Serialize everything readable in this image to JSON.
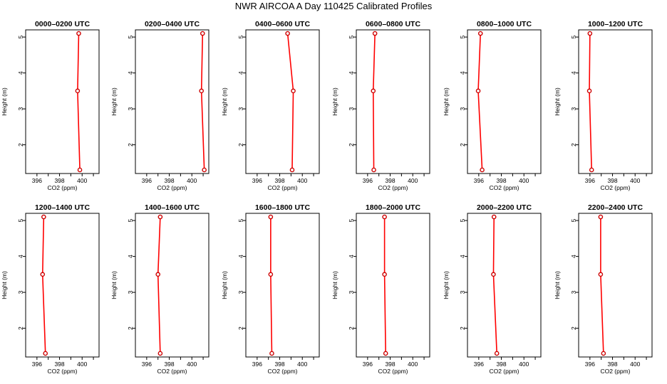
{
  "page_title": "NWR AIRCOA A  Day 110425  Calibrated Profiles",
  "colors": {
    "line": "#ff0000",
    "marker": "#cc0000",
    "frame": "#000000"
  },
  "chart_data": [
    {
      "type": "line",
      "title": "0000–0200 UTC",
      "xlabel": "CO2 (ppm)",
      "ylabel": "Height (m)",
      "xlim": [
        395,
        401.5
      ],
      "ylim": [
        1.2,
        5.2
      ],
      "xticks": [
        396,
        398,
        400
      ],
      "yticks": [
        2,
        3,
        4,
        5
      ],
      "series": [
        {
          "name": "profile",
          "points": [
            {
              "co2": 399.8,
              "height": 1.3
            },
            {
              "co2": 399.6,
              "height": 3.5
            },
            {
              "co2": 399.7,
              "height": 5.1
            }
          ]
        }
      ]
    },
    {
      "type": "line",
      "title": "0200–0400 UTC",
      "xlabel": "CO2 (ppm)",
      "ylabel": "Height (m)",
      "xlim": [
        395,
        401.5
      ],
      "ylim": [
        1.2,
        5.2
      ],
      "xticks": [
        396,
        398,
        400
      ],
      "yticks": [
        2,
        3,
        4,
        5
      ],
      "series": [
        {
          "name": "profile",
          "points": [
            {
              "co2": 401.1,
              "height": 1.3
            },
            {
              "co2": 400.85,
              "height": 3.5
            },
            {
              "co2": 400.95,
              "height": 5.1
            }
          ]
        }
      ]
    },
    {
      "type": "line",
      "title": "0400–0600 UTC",
      "xlabel": "CO2 (ppm)",
      "ylabel": "Height (m)",
      "xlim": [
        395,
        401.5
      ],
      "ylim": [
        1.2,
        5.2
      ],
      "xticks": [
        396,
        398,
        400
      ],
      "yticks": [
        2,
        3,
        4,
        5
      ],
      "series": [
        {
          "name": "profile",
          "points": [
            {
              "co2": 399.1,
              "height": 1.3
            },
            {
              "co2": 399.2,
              "height": 3.5
            },
            {
              "co2": 398.7,
              "height": 5.1
            }
          ]
        }
      ]
    },
    {
      "type": "line",
      "title": "0600–0800 UTC",
      "xlabel": "CO2 (ppm)",
      "ylabel": "Height (m)",
      "xlim": [
        395,
        401.5
      ],
      "ylim": [
        1.2,
        5.2
      ],
      "xticks": [
        396,
        398,
        400
      ],
      "yticks": [
        2,
        3,
        4,
        5
      ],
      "series": [
        {
          "name": "profile",
          "points": [
            {
              "co2": 396.55,
              "height": 1.3
            },
            {
              "co2": 396.5,
              "height": 3.5
            },
            {
              "co2": 396.65,
              "height": 5.1
            }
          ]
        }
      ]
    },
    {
      "type": "line",
      "title": "0800–1000 UTC",
      "xlabel": "CO2 (ppm)",
      "ylabel": "Height (m)",
      "xlim": [
        395,
        401.5
      ],
      "ylim": [
        1.2,
        5.2
      ],
      "xticks": [
        396,
        398,
        400
      ],
      "yticks": [
        2,
        3,
        4,
        5
      ],
      "series": [
        {
          "name": "profile",
          "points": [
            {
              "co2": 396.3,
              "height": 1.3
            },
            {
              "co2": 395.95,
              "height": 3.5
            },
            {
              "co2": 396.15,
              "height": 5.1
            }
          ]
        }
      ]
    },
    {
      "type": "line",
      "title": "1000–1200 UTC",
      "xlabel": "CO2 (ppm)",
      "ylabel": "Height (m)",
      "xlim": [
        395,
        401.5
      ],
      "ylim": [
        1.2,
        5.2
      ],
      "xticks": [
        396,
        398,
        400
      ],
      "yticks": [
        2,
        3,
        4,
        5
      ],
      "series": [
        {
          "name": "profile",
          "points": [
            {
              "co2": 396.15,
              "height": 1.3
            },
            {
              "co2": 395.95,
              "height": 3.5
            },
            {
              "co2": 396.0,
              "height": 5.1
            }
          ]
        }
      ]
    },
    {
      "type": "line",
      "title": "1200–1400 UTC",
      "xlabel": "CO2 (ppm)",
      "ylabel": "Height (m)",
      "xlim": [
        395,
        401.5
      ],
      "ylim": [
        1.2,
        5.2
      ],
      "xticks": [
        396,
        398,
        400
      ],
      "yticks": [
        2,
        3,
        4,
        5
      ],
      "series": [
        {
          "name": "profile",
          "points": [
            {
              "co2": 396.75,
              "height": 1.3
            },
            {
              "co2": 396.5,
              "height": 3.5
            },
            {
              "co2": 396.6,
              "height": 5.1
            }
          ]
        }
      ]
    },
    {
      "type": "line",
      "title": "1400–1600 UTC",
      "xlabel": "CO2 (ppm)",
      "ylabel": "Height (m)",
      "xlim": [
        395,
        401.5
      ],
      "ylim": [
        1.2,
        5.2
      ],
      "xticks": [
        396,
        398,
        400
      ],
      "yticks": [
        2,
        3,
        4,
        5
      ],
      "series": [
        {
          "name": "profile",
          "points": [
            {
              "co2": 397.2,
              "height": 1.3
            },
            {
              "co2": 397.0,
              "height": 3.5
            },
            {
              "co2": 397.2,
              "height": 5.1
            }
          ]
        }
      ]
    },
    {
      "type": "line",
      "title": "1600–1800 UTC",
      "xlabel": "CO2 (ppm)",
      "ylabel": "Height (m)",
      "xlim": [
        395,
        401.5
      ],
      "ylim": [
        1.2,
        5.2
      ],
      "xticks": [
        396,
        398,
        400
      ],
      "yticks": [
        2,
        3,
        4,
        5
      ],
      "series": [
        {
          "name": "profile",
          "points": [
            {
              "co2": 397.3,
              "height": 1.3
            },
            {
              "co2": 397.2,
              "height": 3.5
            },
            {
              "co2": 397.2,
              "height": 5.1
            }
          ]
        }
      ]
    },
    {
      "type": "line",
      "title": "1800–2000 UTC",
      "xlabel": "CO2 (ppm)",
      "ylabel": "Height (m)",
      "xlim": [
        395,
        401.5
      ],
      "ylim": [
        1.2,
        5.2
      ],
      "xticks": [
        396,
        398,
        400
      ],
      "yticks": [
        2,
        3,
        4,
        5
      ],
      "series": [
        {
          "name": "profile",
          "points": [
            {
              "co2": 397.6,
              "height": 1.3
            },
            {
              "co2": 397.5,
              "height": 3.5
            },
            {
              "co2": 397.5,
              "height": 5.1
            }
          ]
        }
      ]
    },
    {
      "type": "line",
      "title": "2000–2200 UTC",
      "xlabel": "CO2 (ppm)",
      "ylabel": "Height (m)",
      "xlim": [
        395,
        401.5
      ],
      "ylim": [
        1.2,
        5.2
      ],
      "xticks": [
        396,
        398,
        400
      ],
      "yticks": [
        2,
        3,
        4,
        5
      ],
      "series": [
        {
          "name": "profile",
          "points": [
            {
              "co2": 397.6,
              "height": 1.3
            },
            {
              "co2": 397.3,
              "height": 3.5
            },
            {
              "co2": 397.35,
              "height": 5.1
            }
          ]
        }
      ]
    },
    {
      "type": "line",
      "title": "2200–2400 UTC",
      "xlabel": "CO2 (ppm)",
      "ylabel": "Height (m)",
      "xlim": [
        395,
        401.5
      ],
      "ylim": [
        1.2,
        5.2
      ],
      "xticks": [
        396,
        398,
        400
      ],
      "yticks": [
        2,
        3,
        4,
        5
      ],
      "series": [
        {
          "name": "profile",
          "points": [
            {
              "co2": 397.2,
              "height": 1.3
            },
            {
              "co2": 396.95,
              "height": 3.5
            },
            {
              "co2": 396.95,
              "height": 5.1
            }
          ]
        }
      ]
    }
  ]
}
